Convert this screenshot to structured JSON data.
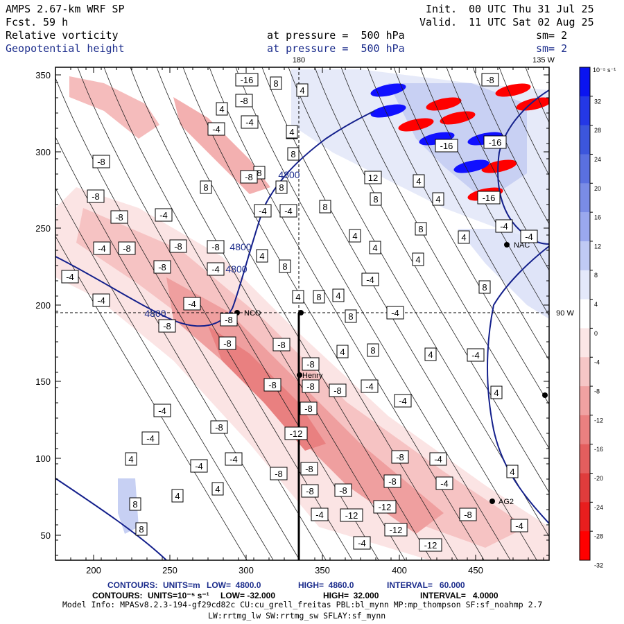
{
  "header": {
    "model": "AMPS 2.67-km WRF SP",
    "forecast_label": "Fcst.",
    "forecast_hours": "59 h",
    "init_label": "Init.",
    "init_value": "00 UTC Thu 31 Jul 25",
    "valid_label": "Valid.",
    "valid_value": "11 UTC Sat 02 Aug 25",
    "field1_name": "Relative vorticity",
    "field2_name": "Geopotential height",
    "level1": "at pressure =  500 hPa",
    "level2": "at pressure =  500 hPa",
    "smooth1": "sm= 2",
    "smooth2": "sm= 2"
  },
  "map_labels": {
    "lon_180": "180",
    "lon_135w": "135 W",
    "lat_90w": "90 W",
    "sites": [
      "NCO",
      "Henry",
      "AG2",
      "NAC"
    ]
  },
  "axes": {
    "x_ticks": [
      "200",
      "250",
      "300",
      "350",
      "400",
      "450"
    ],
    "y_ticks": [
      "350",
      "300",
      "250",
      "200",
      "150",
      "100",
      "50"
    ]
  },
  "colorbar": {
    "unit": "10⁻⁵ s⁻¹",
    "labels": [
      "32",
      "28",
      "24",
      "20",
      "16",
      "12",
      "8",
      "4",
      "0",
      "-4",
      "-8",
      "-12",
      "-16",
      "-20",
      "-24",
      "-28",
      "-32"
    ],
    "colors": [
      "#0a14f0",
      "#2438e6",
      "#3c56dc",
      "#5a70e0",
      "#7a8ce6",
      "#9aa8ee",
      "#c0caf4",
      "#e4e8fa",
      "#ffffff",
      "#fbe6e6",
      "#f6c6c6",
      "#f0a2a2",
      "#ea8080",
      "#e45e5e",
      "#e03c3c",
      "#e81e1e",
      "#ff0000"
    ]
  },
  "contour_labels": {
    "vorticity": [
      "-16",
      "8",
      "-8",
      "4",
      "-4",
      "12",
      "-12",
      "-16"
    ],
    "height": [
      "4800",
      "4800",
      "4800",
      "4800"
    ]
  },
  "footer": {
    "line1_label": "CONTOURS:",
    "line1_units": "UNITS=m",
    "line1_low": "LOW=  4800.0",
    "line1_high": "HIGH=  4860.0",
    "line1_interval": "INTERVAL=   60.000",
    "line2_label": "CONTOURS:",
    "line2_units": "UNITS=10⁻⁵ s⁻¹",
    "line2_low": "LOW= -32.000",
    "line2_high": "HIGH=  32.000",
    "line2_interval": "INTERVAL=   4.0000",
    "model_info": "Model Info: MPASv8.2.3-194-gf29cd82c CU:cu_grell_freitas PBL:bl_mynn MP:mp_thompson SF:sf_noahmp 2.7",
    "physics": "LW:rrtmg_lw SW:rrtmg_sw SFLAY:sf_mynn"
  }
}
